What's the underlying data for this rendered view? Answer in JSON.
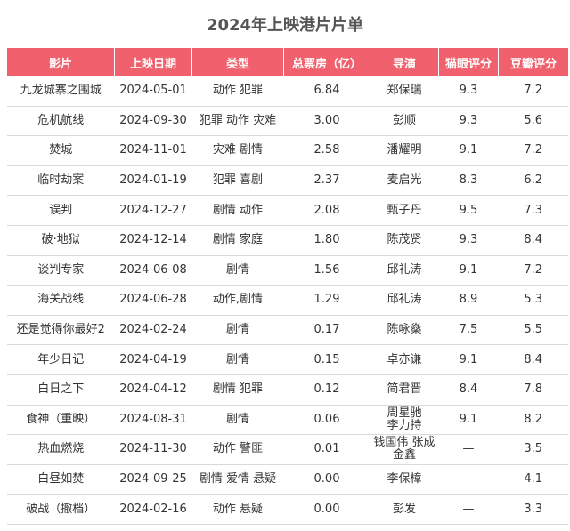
{
  "title": "2024年上映港片片单",
  "columns": [
    "影片",
    "上映日期",
    "类型",
    "总票房（亿）",
    "导演",
    "猫眼评分",
    "豆瓣评分"
  ],
  "rows": [
    {
      "film": "九龙城寨之围城",
      "date": "2024-05-01",
      "genre": "动作 犯罪",
      "box": "6.84",
      "director": "郑保瑞",
      "maoyan": "9.3",
      "douban": "7.2"
    },
    {
      "film": "危机航线",
      "date": "2024-09-30",
      "genre": "犯罪 动作 灾难",
      "box": "3.00",
      "director": "彭顺",
      "maoyan": "9.3",
      "douban": "5.6"
    },
    {
      "film": "焚城",
      "date": "2024-11-01",
      "genre": "灾难 剧情",
      "box": "2.58",
      "director": "潘耀明",
      "maoyan": "9.1",
      "douban": "7.2"
    },
    {
      "film": "临时劫案",
      "date": "2024-01-19",
      "genre": "犯罪 喜剧",
      "box": "2.37",
      "director": "麦启光",
      "maoyan": "8.3",
      "douban": "6.2"
    },
    {
      "film": "误判",
      "date": "2024-12-27",
      "genre": "剧情 动作",
      "box": "2.08",
      "director": "甄子丹",
      "maoyan": "9.5",
      "douban": "7.3"
    },
    {
      "film": "破·地狱",
      "date": "2024-12-14",
      "genre": "剧情 家庭",
      "box": "1.80",
      "director": "陈茂贤",
      "maoyan": "9.3",
      "douban": "8.4"
    },
    {
      "film": "谈判专家",
      "date": "2024-06-08",
      "genre": "剧情",
      "box": "1.56",
      "director": "邱礼涛",
      "maoyan": "9.1",
      "douban": "7.2"
    },
    {
      "film": "海关战线",
      "date": "2024-06-28",
      "genre": "动作,剧情",
      "box": "1.29",
      "director": "邱礼涛",
      "maoyan": "8.9",
      "douban": "5.3"
    },
    {
      "film": "还是觉得你最好2",
      "date": "2024-02-24",
      "genre": "剧情",
      "box": "0.17",
      "director": "陈咏燊",
      "maoyan": "7.5",
      "douban": "5.5"
    },
    {
      "film": "年少日记",
      "date": "2024-04-19",
      "genre": "剧情",
      "box": "0.15",
      "director": "卓亦谦",
      "maoyan": "9.1",
      "douban": "8.4"
    },
    {
      "film": "白日之下",
      "date": "2024-04-12",
      "genre": "剧情 犯罪",
      "box": "0.12",
      "director": "简君晋",
      "maoyan": "8.4",
      "douban": "7.8"
    },
    {
      "film": "食神（重映）",
      "date": "2024-08-31",
      "genre": "剧情",
      "box": "0.06",
      "director": "周星驰",
      "director2": "李力持",
      "maoyan": "9.1",
      "douban": "8.2"
    },
    {
      "film": "热血燃烧",
      "date": "2024-11-30",
      "genre": "动作 警匪",
      "box": "0.01",
      "director": "钱国伟 张成",
      "director2": "金鑫",
      "maoyan": "—",
      "douban": "3.5"
    },
    {
      "film": "白昼如焚",
      "date": "2024-09-25",
      "genre": "剧情 爱情 悬疑",
      "box": "0.00",
      "director": "李保樟",
      "maoyan": "—",
      "douban": "4.1"
    },
    {
      "film": "破战（撤档）",
      "date": "2024-02-16",
      "genre": "动作 悬疑",
      "box": "0.00",
      "director": "彭发",
      "maoyan": "—",
      "douban": "3.3"
    }
  ]
}
